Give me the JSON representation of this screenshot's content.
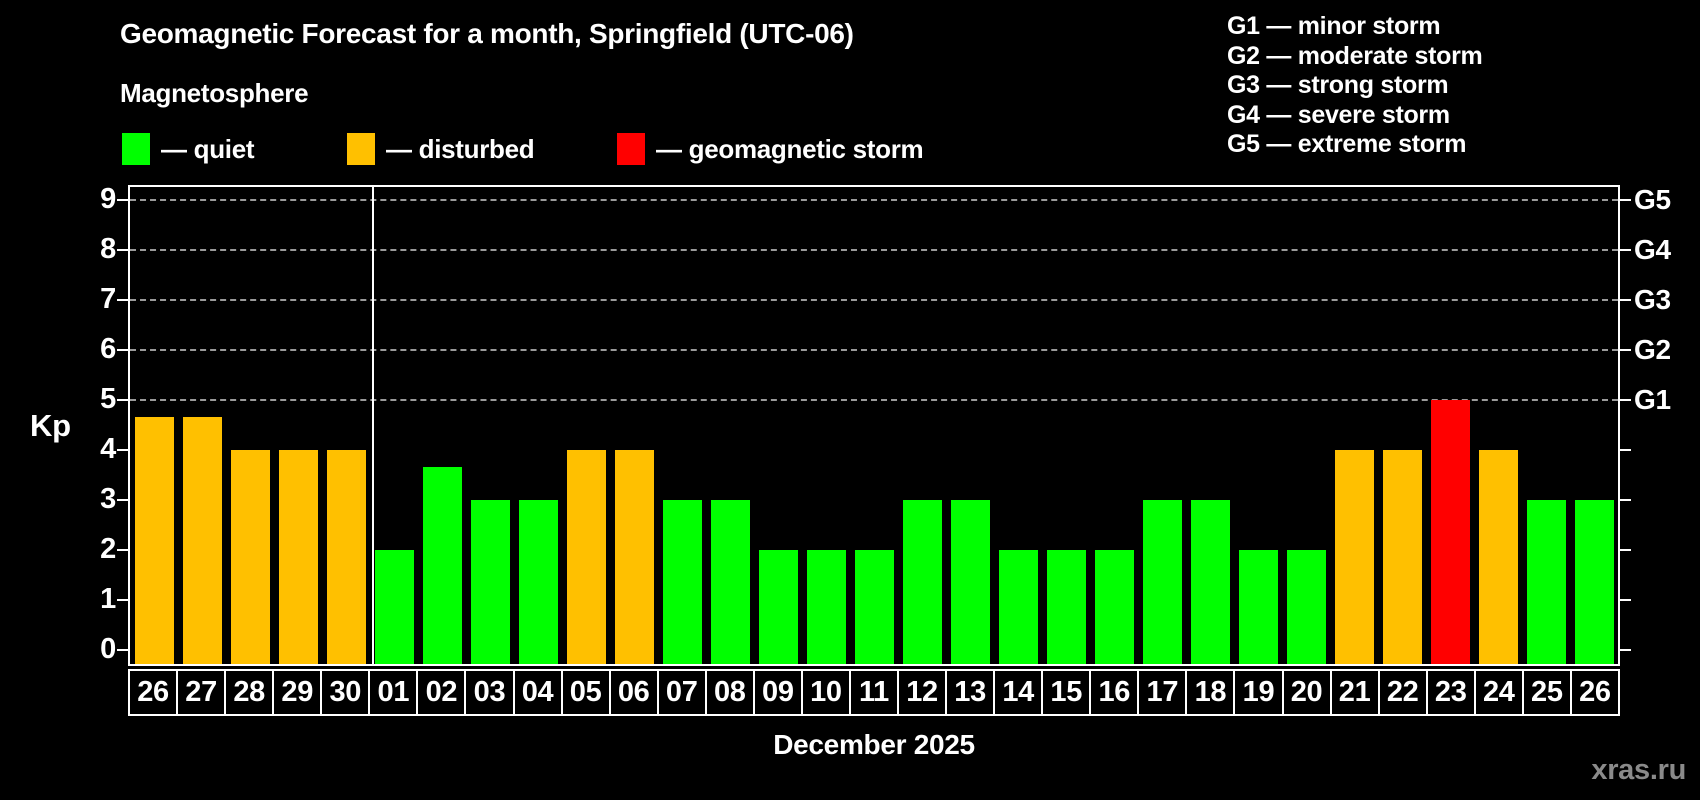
{
  "title": "Geomagnetic Forecast for a month, Springfield (UTC-06)",
  "subtitle": "Magnetosphere",
  "watermark": "xras.ru",
  "colors": {
    "quiet": "#00ff00",
    "disturbed": "#ffc000",
    "storm": "#ff0000",
    "background": "#000000",
    "gridline": "#9a9a9a",
    "axis": "#ffffff",
    "watermark_text": "#8a8a8a"
  },
  "legend": {
    "items": [
      {
        "status": "quiet",
        "label": "— quiet"
      },
      {
        "status": "disturbed",
        "label": "— disturbed"
      },
      {
        "status": "storm",
        "label": "— geomagnetic storm"
      }
    ]
  },
  "storm_scale": {
    "items": [
      "G1 — minor storm",
      "G2 — moderate storm",
      "G3 — strong storm",
      "G4 — severe storm",
      "G5 — extreme storm"
    ]
  },
  "chart_data": {
    "type": "bar",
    "title": "Geomagnetic Forecast for a month, Springfield (UTC-06)",
    "xlabel": "December 2025",
    "ylabel": "Kp",
    "ylim": [
      0,
      9.3
    ],
    "yticks": [
      0,
      1,
      2,
      3,
      4,
      5,
      6,
      7,
      8,
      9
    ],
    "gridlines_at": [
      5,
      6,
      7,
      8,
      9
    ],
    "grid": "dashed, only at storm levels G1–G5",
    "legend_position": "top-left",
    "right_axis": [
      {
        "kp": 5,
        "label": "G1"
      },
      {
        "kp": 6,
        "label": "G2"
      },
      {
        "kp": 7,
        "label": "G3"
      },
      {
        "kp": 8,
        "label": "G4"
      },
      {
        "kp": 9,
        "label": "G5"
      }
    ],
    "month_boundary_after_bar_index": 4,
    "bars": [
      {
        "day": "26",
        "kp": 4.67,
        "status": "disturbed"
      },
      {
        "day": "27",
        "kp": 4.67,
        "status": "disturbed"
      },
      {
        "day": "28",
        "kp": 4,
        "status": "disturbed"
      },
      {
        "day": "29",
        "kp": 4,
        "status": "disturbed"
      },
      {
        "day": "30",
        "kp": 4,
        "status": "disturbed"
      },
      {
        "day": "01",
        "kp": 2,
        "status": "quiet"
      },
      {
        "day": "02",
        "kp": 3.67,
        "status": "quiet"
      },
      {
        "day": "03",
        "kp": 3,
        "status": "quiet"
      },
      {
        "day": "04",
        "kp": 3,
        "status": "quiet"
      },
      {
        "day": "05",
        "kp": 4,
        "status": "disturbed"
      },
      {
        "day": "06",
        "kp": 4,
        "status": "disturbed"
      },
      {
        "day": "07",
        "kp": 3,
        "status": "quiet"
      },
      {
        "day": "08",
        "kp": 3,
        "status": "quiet"
      },
      {
        "day": "09",
        "kp": 2,
        "status": "quiet"
      },
      {
        "day": "10",
        "kp": 2,
        "status": "quiet"
      },
      {
        "day": "11",
        "kp": 2,
        "status": "quiet"
      },
      {
        "day": "12",
        "kp": 3,
        "status": "quiet"
      },
      {
        "day": "13",
        "kp": 3,
        "status": "quiet"
      },
      {
        "day": "14",
        "kp": 2,
        "status": "quiet"
      },
      {
        "day": "15",
        "kp": 2,
        "status": "quiet"
      },
      {
        "day": "16",
        "kp": 2,
        "status": "quiet"
      },
      {
        "day": "17",
        "kp": 3,
        "status": "quiet"
      },
      {
        "day": "18",
        "kp": 3,
        "status": "quiet"
      },
      {
        "day": "19",
        "kp": 2,
        "status": "quiet"
      },
      {
        "day": "20",
        "kp": 2,
        "status": "quiet"
      },
      {
        "day": "21",
        "kp": 4,
        "status": "disturbed"
      },
      {
        "day": "22",
        "kp": 4,
        "status": "disturbed"
      },
      {
        "day": "23",
        "kp": 5,
        "status": "storm"
      },
      {
        "day": "24",
        "kp": 4,
        "status": "disturbed"
      },
      {
        "day": "25",
        "kp": 3,
        "status": "quiet"
      },
      {
        "day": "26",
        "kp": 3,
        "status": "quiet"
      }
    ]
  }
}
